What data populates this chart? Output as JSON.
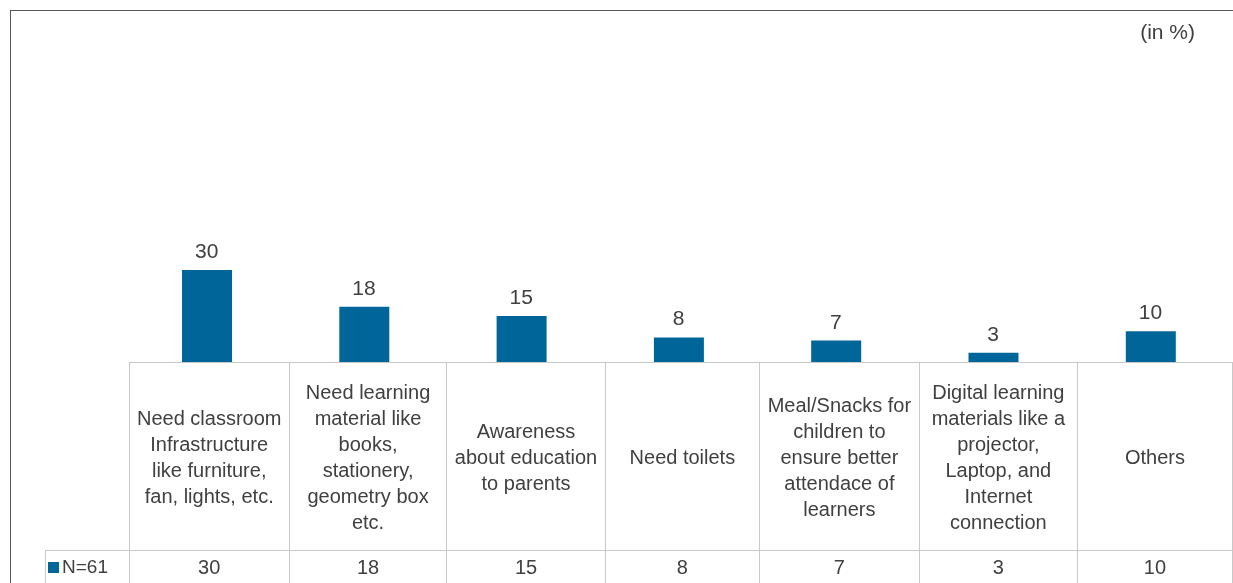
{
  "chart_data": {
    "type": "bar",
    "annotations": [
      "(in %)",
      {
        "text": "30",
        "x": "Need classroom Infrastructure like furniture, fan, lights, etc.",
        "y": 30
      },
      {
        "text": "18",
        "x": "Need learning material like books, stationery, geometry box etc.",
        "y": 18
      },
      {
        "text": "15",
        "x": "Awareness about education to parents",
        "y": 15
      },
      {
        "text": "8",
        "x": "Need toilets",
        "y": 8
      },
      {
        "text": "7",
        "x": "Meal/Snacks for children to ensure better attendace of learners",
        "y": 7
      },
      {
        "text": "3",
        "x": "Digital learning materials like a projector, Laptop, and Internet connection",
        "y": 3
      },
      {
        "text": "10",
        "x": "Others",
        "y": 10
      }
    ],
    "categories": [
      "Need classroom Infrastructure like furniture, fan, lights, etc.",
      "Need learning material like books, stationery, geometry box etc.",
      "Awareness about education to parents",
      "Need toilets",
      "Meal/Snacks for children to ensure better attendace of learners",
      "Digital learning materials like a projector, Laptop, and Internet connection",
      "Others"
    ],
    "series": [
      {
        "name": "N=61",
        "color": "#006699",
        "values": [
          30,
          18,
          15,
          8,
          7,
          3,
          10
        ]
      }
    ],
    "data_labels": true,
    "legend": "bottom left"
  }
}
